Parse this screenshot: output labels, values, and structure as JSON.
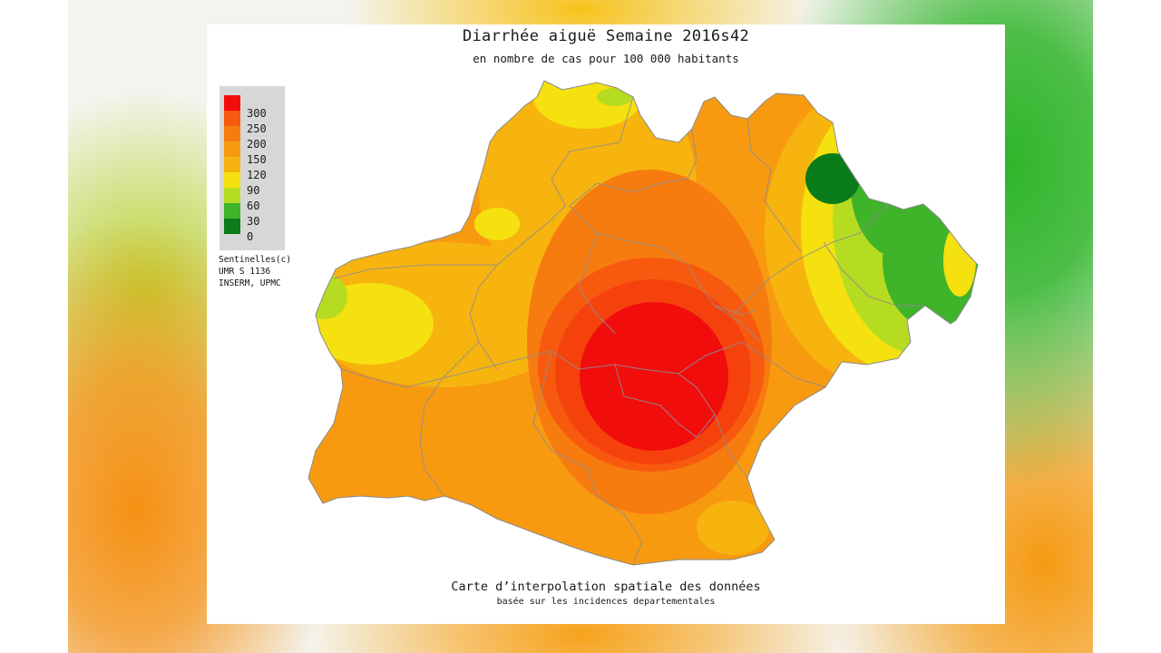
{
  "title": "Diarrhée aiguë Semaine 2016s42",
  "subtitle": "en nombre de cas pour 100 000 habitants",
  "legend": {
    "labels": [
      "300",
      "250",
      "200",
      "150",
      "120",
      "90",
      "60",
      "30",
      "0"
    ],
    "colors": [
      "#f20d0d",
      "#f75a0f",
      "#f77c10",
      "#f89a10",
      "#f7b40f",
      "#f5e10f",
      "#b6dc21",
      "#3fb32a",
      "#0b7c1a"
    ]
  },
  "credits": {
    "line1": "Sentinelles(c)",
    "line2": "UMR S 1136",
    "line3": "INSERM, UPMC"
  },
  "footer": {
    "line1": "Carte d’interpolation spatiale des données",
    "line2": "basée sur les incidences departementales"
  }
}
